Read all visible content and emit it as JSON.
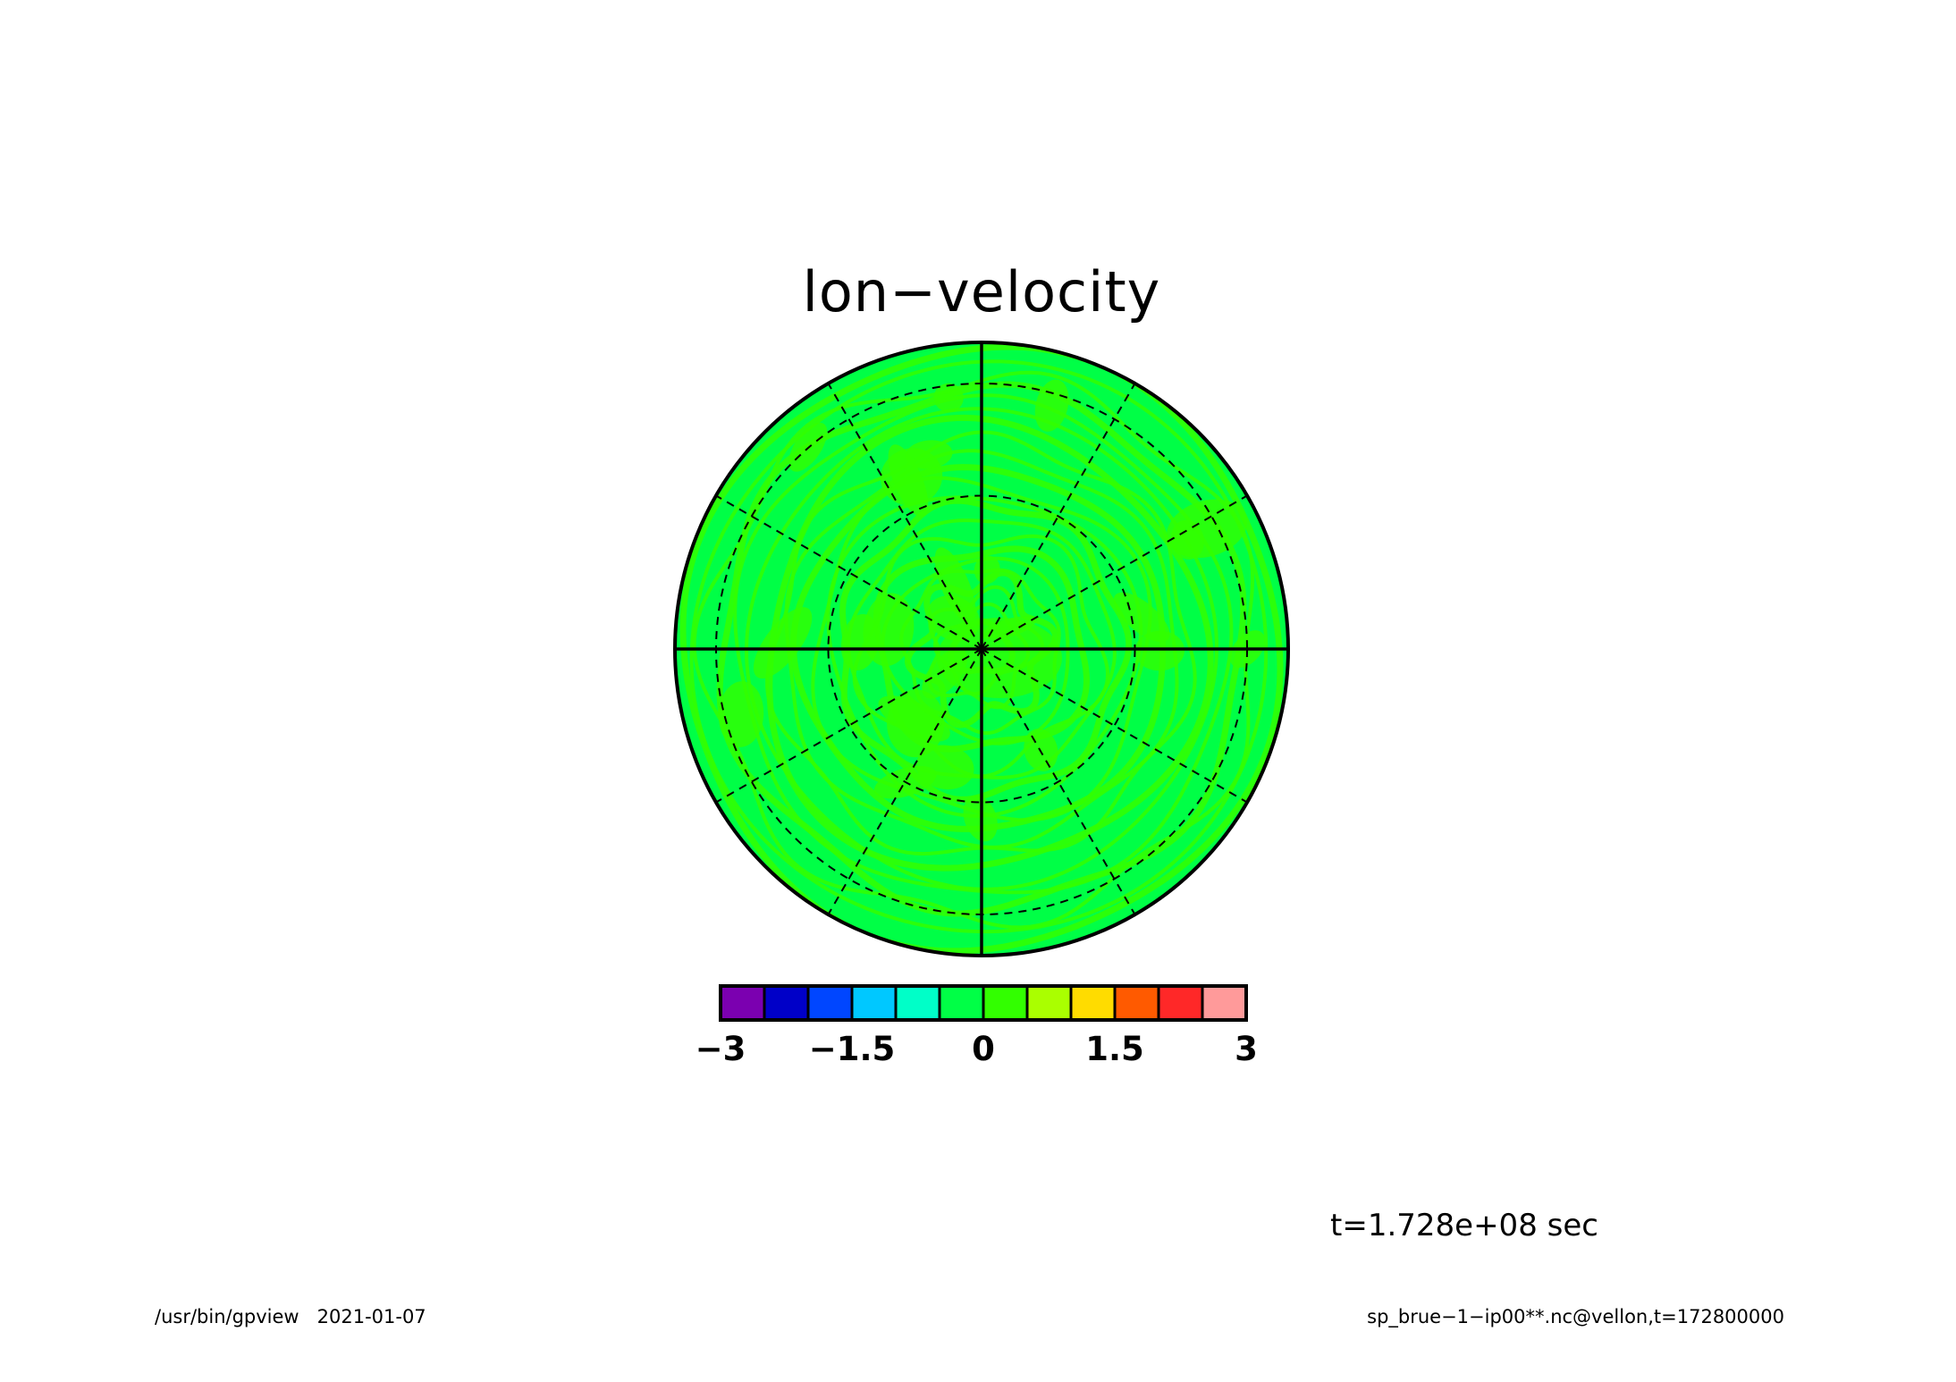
{
  "chart_data": {
    "type": "heatmap",
    "projection": "polar-stereographic",
    "title": "lon−velocity",
    "annotation_time": "t=1.728e+08 sec",
    "footer_left": "/usr/bin/gpview   2021-01-07",
    "footer_right": "sp_brue−1−ip00**.nc@vellon,t=172800000",
    "colorbar": {
      "range": [
        -3,
        3
      ],
      "boundaries": [
        -3,
        -2.5,
        -2,
        -1.5,
        -1,
        -0.5,
        0,
        0.5,
        1,
        1.5,
        2,
        2.5,
        3
      ],
      "colors": [
        "#7b00b0",
        "#0000c8",
        "#0046ff",
        "#00c8ff",
        "#00ffc8",
        "#00ff46",
        "#32ff00",
        "#aaff00",
        "#ffdc00",
        "#ff5a00",
        "#ff2828",
        "#ff9a9a"
      ],
      "tick_labels": [
        "−3",
        "−1.5",
        "0",
        "1.5",
        "3"
      ],
      "tick_values": [
        -3,
        -1.5,
        0,
        1.5,
        3
      ]
    },
    "field": {
      "dominant_range": [
        -0.5,
        0.5
      ],
      "dominant_colors": [
        "#00ff46",
        "#32ff00"
      ],
      "description_values": "values mostly between -0.5 and 0.5"
    },
    "grid": {
      "meridians_deg": [
        0,
        30,
        60,
        90,
        120,
        150,
        180,
        210,
        240,
        270,
        300,
        330
      ],
      "solid_meridians_deg": [
        0,
        90,
        180,
        270
      ],
      "latitude_circles_fraction": [
        0.5,
        0.866
      ]
    }
  }
}
